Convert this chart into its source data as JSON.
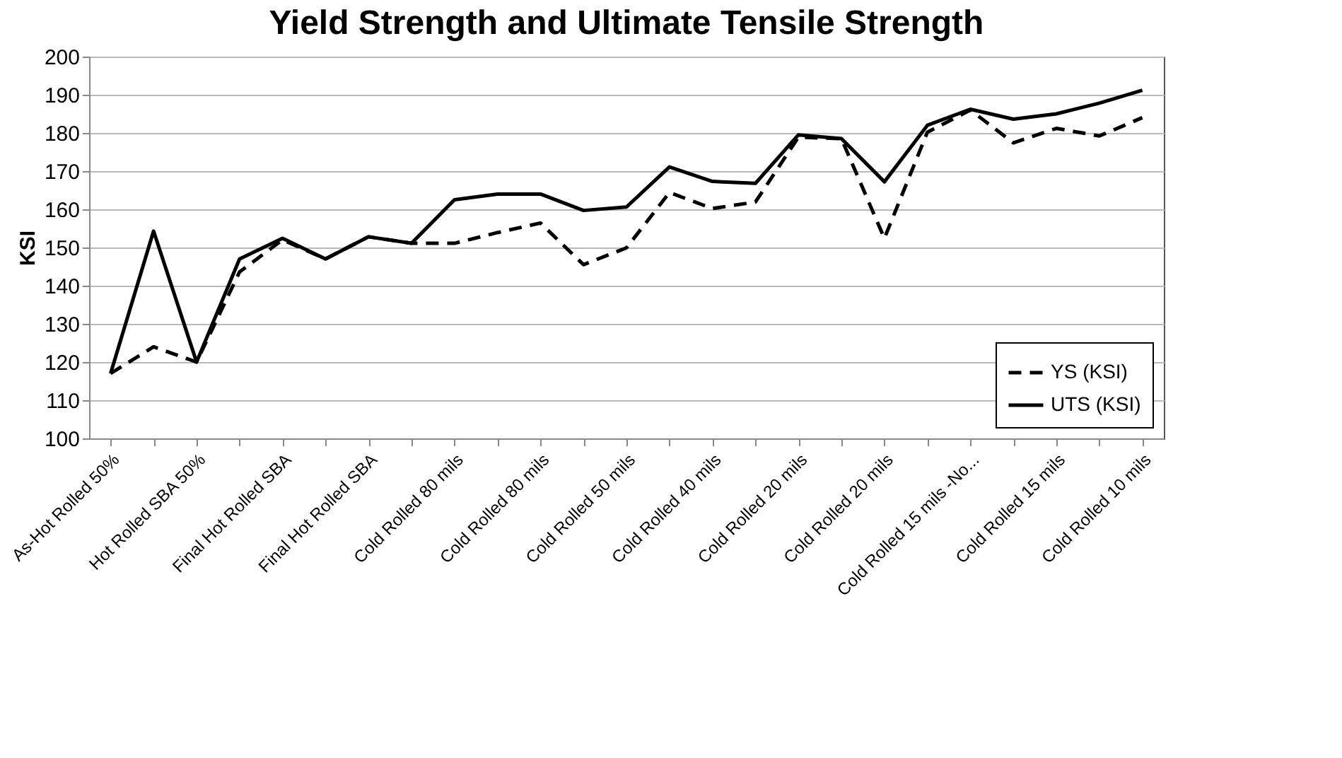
{
  "chart_data": {
    "type": "line",
    "title": "Yield Strength and Ultimate Tensile Strength",
    "ylabel": "KSI",
    "categories": [
      "As-Hot Rolled 50%",
      null,
      "Hot Rolled SBA 50%",
      null,
      "Final Hot Rolled SBA",
      null,
      "Final Hot Rolled SBA",
      null,
      "Cold Rolled 80 mils",
      null,
      "Cold Rolled 80 mils",
      null,
      "Cold Rolled 50 mils",
      null,
      "Cold Rolled 40 mils",
      null,
      "Cold Rolled 20 mils",
      null,
      "Cold Rolled 20 mils",
      null,
      "Cold Rolled 15 mils -No...",
      null,
      "Cold Rolled 15 mils",
      null,
      "Cold Rolled 10 mils"
    ],
    "series": [
      {
        "name": "YS (KSI)",
        "color": "#000000",
        "line_style": "dashed",
        "values": [
          117,
          124,
          120,
          143.6,
          152,
          147,
          152.8,
          151.1,
          151.1,
          153.9,
          156.4,
          145.5,
          149.9,
          164.4,
          160.2,
          161.9,
          178.9,
          178.5,
          152.4,
          180.2,
          186,
          177.4,
          181.2,
          179.2,
          184
        ]
      },
      {
        "name": "UTS (KSI)",
        "color": "#000000",
        "line_style": "solid",
        "values": [
          117,
          154.3,
          120,
          147,
          152.4,
          147,
          152.8,
          151.1,
          162.5,
          164,
          164,
          159.7,
          160.6,
          171.1,
          167.3,
          166.8,
          179.5,
          178.5,
          167.2,
          182,
          186.2,
          183.6,
          185,
          187.8,
          191.2
        ]
      }
    ],
    "ylim": [
      100,
      200
    ],
    "yticks": [
      100,
      110,
      120,
      130,
      140,
      150,
      160,
      170,
      180,
      190,
      200
    ],
    "grid": "y",
    "legend": "bottom right",
    "marker": "none"
  }
}
